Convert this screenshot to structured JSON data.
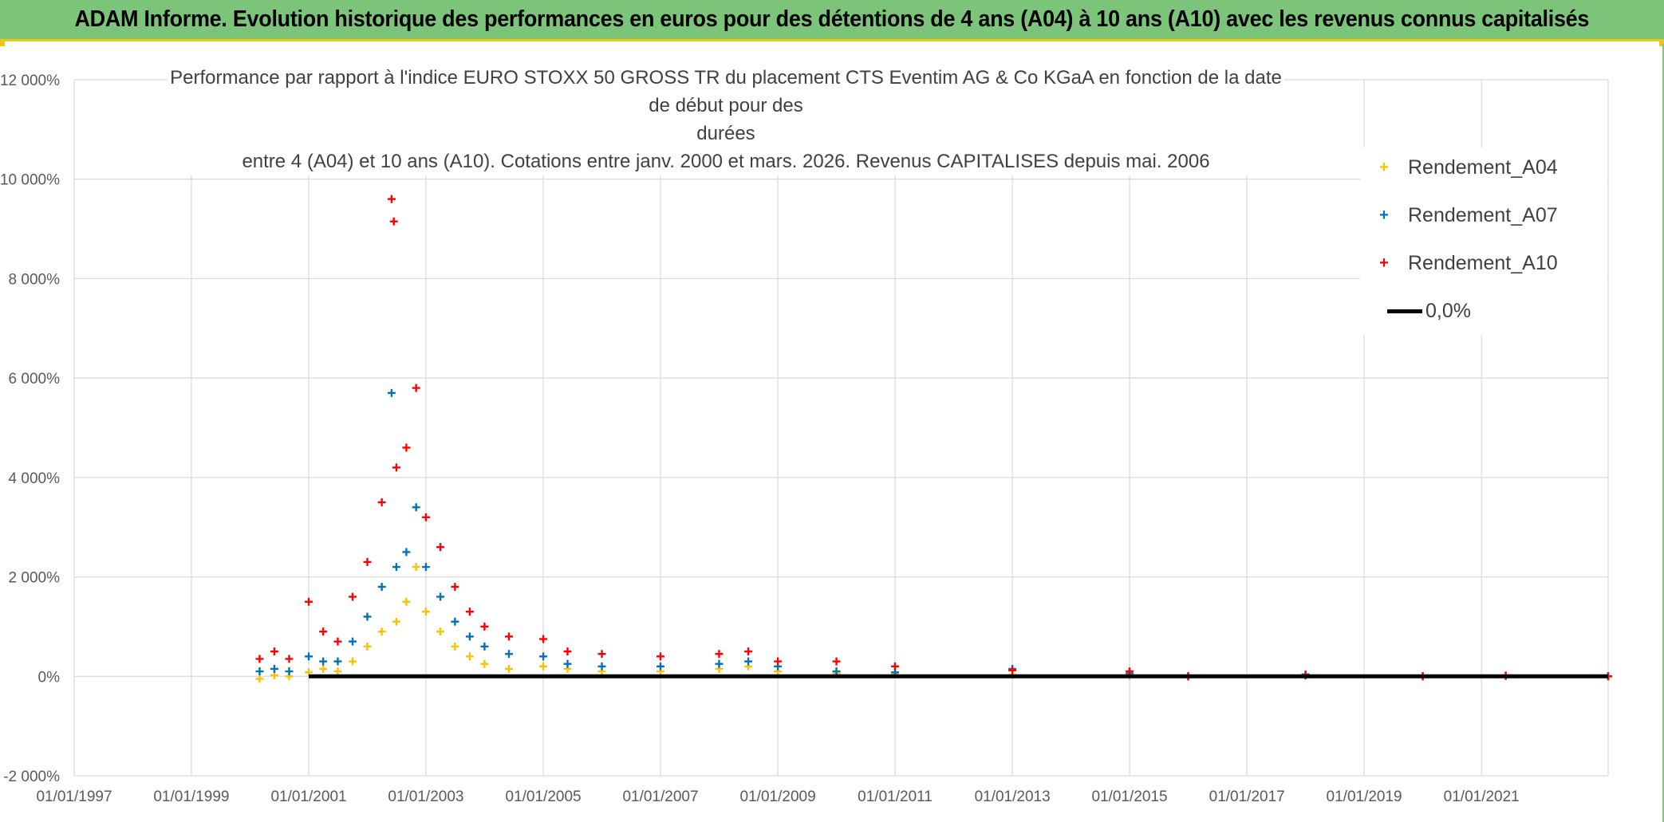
{
  "banner": {
    "title": "ADAM Informe. Evolution historique des performances en euros pour des détentions de 4 ans (A04) à 10 ans (A10) avec les revenus connus capitalisés"
  },
  "colors": {
    "banner_bg": "#7cc47a",
    "banner_accent": "#f0c419",
    "A04": "#ffc000",
    "A07": "#0070c0",
    "A10": "#ff0000",
    "zero": "#000000",
    "grid": "#d9d9d9"
  },
  "chart_data": {
    "type": "scatter",
    "title_line1": "Performance par rapport à l'indice EURO STOXX 50 GROSS TR  du placement CTS Eventim AG & Co KGaA en fonction de la date de début pour des",
    "title_line2": "durées",
    "title_line3": "entre 4 (A04) et 10 ans (A10). Cotations entre janv. 2000 et mars. 2026. Revenus CAPITALISES depuis mai. 2006",
    "xlabel": "",
    "ylabel": "",
    "x_range": [
      "1997-01-01",
      "2023-03-01"
    ],
    "ylim": [
      -2000,
      12000
    ],
    "x_ticks": [
      "01/01/1997",
      "01/01/1999",
      "01/01/2001",
      "01/01/2003",
      "01/01/2005",
      "01/01/2007",
      "01/01/2009",
      "01/01/2011",
      "01/01/2013",
      "01/01/2015",
      "01/01/2017",
      "01/01/2019",
      "01/01/2021"
    ],
    "y_ticks": [
      "-2 000%",
      "0%",
      "2 000%",
      "4 000%",
      "6 000%",
      "8 000%",
      "10 000%",
      "12 000%"
    ],
    "grid": true,
    "legend_position": "top-right",
    "series": [
      {
        "name": "Rendement_A04",
        "marker": "+",
        "points": [
          [
            "2000-03-01",
            -50
          ],
          [
            "2000-06-01",
            20
          ],
          [
            "2000-09-01",
            0
          ],
          [
            "2001-01-01",
            80
          ],
          [
            "2001-04-01",
            150
          ],
          [
            "2001-07-01",
            100
          ],
          [
            "2001-10-01",
            300
          ],
          [
            "2002-01-01",
            600
          ],
          [
            "2002-04-01",
            900
          ],
          [
            "2002-07-01",
            1100
          ],
          [
            "2002-09-01",
            1500
          ],
          [
            "2002-11-01",
            2200
          ],
          [
            "2003-01-01",
            1300
          ],
          [
            "2003-04-01",
            900
          ],
          [
            "2003-07-01",
            600
          ],
          [
            "2003-10-01",
            400
          ],
          [
            "2004-01-01",
            250
          ],
          [
            "2004-06-01",
            150
          ],
          [
            "2005-01-01",
            200
          ],
          [
            "2005-06-01",
            150
          ],
          [
            "2006-01-01",
            100
          ],
          [
            "2007-01-01",
            100
          ],
          [
            "2008-01-01",
            150
          ],
          [
            "2008-07-01",
            200
          ],
          [
            "2009-01-01",
            100
          ],
          [
            "2010-01-01",
            60
          ],
          [
            "2011-01-01",
            40
          ],
          [
            "2013-01-01",
            30
          ],
          [
            "2015-01-01",
            10
          ],
          [
            "2016-01-01",
            0
          ],
          [
            "2018-01-01",
            10
          ],
          [
            "2020-01-01",
            0
          ],
          [
            "2021-06-01",
            20
          ],
          [
            "2023-03-01",
            0
          ]
        ]
      },
      {
        "name": "Rendement_A07",
        "marker": "+",
        "points": [
          [
            "2000-03-01",
            100
          ],
          [
            "2000-06-01",
            150
          ],
          [
            "2000-09-01",
            100
          ],
          [
            "2001-01-01",
            400
          ],
          [
            "2001-04-01",
            300
          ],
          [
            "2001-07-01",
            300
          ],
          [
            "2001-10-01",
            700
          ],
          [
            "2002-01-01",
            1200
          ],
          [
            "2002-04-01",
            1800
          ],
          [
            "2002-06-01",
            5700
          ],
          [
            "2002-07-01",
            2200
          ],
          [
            "2002-09-01",
            2500
          ],
          [
            "2002-11-01",
            3400
          ],
          [
            "2003-01-01",
            2200
          ],
          [
            "2003-04-01",
            1600
          ],
          [
            "2003-07-01",
            1100
          ],
          [
            "2003-10-01",
            800
          ],
          [
            "2004-01-01",
            600
          ],
          [
            "2004-06-01",
            450
          ],
          [
            "2005-01-01",
            400
          ],
          [
            "2005-06-01",
            250
          ],
          [
            "2006-01-01",
            200
          ],
          [
            "2007-01-01",
            200
          ],
          [
            "2008-01-01",
            250
          ],
          [
            "2008-07-01",
            300
          ],
          [
            "2009-01-01",
            200
          ],
          [
            "2010-01-01",
            100
          ],
          [
            "2011-01-01",
            80
          ],
          [
            "2013-01-01",
            150
          ],
          [
            "2015-01-01",
            60
          ],
          [
            "2016-01-01",
            0
          ],
          [
            "2018-01-01",
            40
          ],
          [
            "2020-01-01",
            0
          ],
          [
            "2021-06-01",
            10
          ],
          [
            "2023-03-01",
            0
          ]
        ]
      },
      {
        "name": "Rendement_A10",
        "marker": "+",
        "points": [
          [
            "2000-03-01",
            350
          ],
          [
            "2000-06-01",
            500
          ],
          [
            "2000-09-01",
            350
          ],
          [
            "2001-01-01",
            1500
          ],
          [
            "2001-04-01",
            900
          ],
          [
            "2001-07-01",
            700
          ],
          [
            "2001-10-01",
            1600
          ],
          [
            "2002-01-01",
            2300
          ],
          [
            "2002-04-01",
            3500
          ],
          [
            "2002-06-01",
            9600
          ],
          [
            "2002-06-15",
            9150
          ],
          [
            "2002-07-01",
            4200
          ],
          [
            "2002-09-01",
            4600
          ],
          [
            "2002-11-01",
            5800
          ],
          [
            "2003-01-01",
            3200
          ],
          [
            "2003-04-01",
            2600
          ],
          [
            "2003-07-01",
            1800
          ],
          [
            "2003-10-01",
            1300
          ],
          [
            "2004-01-01",
            1000
          ],
          [
            "2004-06-01",
            800
          ],
          [
            "2005-01-01",
            750
          ],
          [
            "2005-06-01",
            500
          ],
          [
            "2006-01-01",
            450
          ],
          [
            "2007-01-01",
            400
          ],
          [
            "2008-01-01",
            450
          ],
          [
            "2008-07-01",
            500
          ],
          [
            "2009-01-01",
            300
          ],
          [
            "2010-01-01",
            300
          ],
          [
            "2011-01-01",
            200
          ],
          [
            "2013-01-01",
            120
          ],
          [
            "2015-01-01",
            100
          ],
          [
            "2016-01-01",
            0
          ],
          [
            "2018-01-01",
            20
          ],
          [
            "2020-01-01",
            0
          ],
          [
            "2021-06-01",
            10
          ],
          [
            "2023-03-01",
            0
          ]
        ]
      },
      {
        "name": "0,0%",
        "line": true,
        "points": [
          [
            "2001-01-01",
            0
          ],
          [
            "2023-03-01",
            0
          ]
        ]
      }
    ]
  }
}
